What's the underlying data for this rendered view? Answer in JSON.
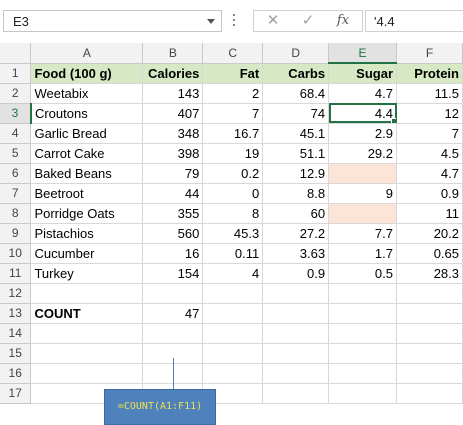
{
  "formula_bar": {
    "name_box": "E3",
    "formula_value": "'4.4",
    "cancel_glyph": "✕",
    "enter_glyph": "✓",
    "fx_glyph": "fx"
  },
  "columns": [
    "A",
    "B",
    "C",
    "D",
    "E",
    "F"
  ],
  "active_cell": {
    "column": "E",
    "row": 3
  },
  "rows": [
    {
      "num": "1",
      "cells": [
        "Food (100 g)",
        "Calories",
        "Fat",
        "Carbs",
        "Sugar",
        "Protein"
      ]
    },
    {
      "num": "2",
      "cells": [
        "Weetabix",
        "143",
        "2",
        "68.4",
        "4.7",
        "11.5"
      ]
    },
    {
      "num": "3",
      "cells": [
        "Croutons",
        "407",
        "7",
        "74",
        "4.4",
        "12"
      ]
    },
    {
      "num": "4",
      "cells": [
        "Garlic Bread",
        "348",
        "16.7",
        "45.1",
        "2.9",
        "7"
      ]
    },
    {
      "num": "5",
      "cells": [
        "Carrot Cake",
        "398",
        "19",
        "51.1",
        "29.2",
        "4.5"
      ]
    },
    {
      "num": "6",
      "cells": [
        "Baked Beans",
        "79",
        "0.2",
        "12.9",
        "",
        "4.7"
      ]
    },
    {
      "num": "7",
      "cells": [
        "Beetroot",
        "44",
        "0",
        "8.8",
        "9",
        "0.9"
      ]
    },
    {
      "num": "8",
      "cells": [
        "Porridge Oats",
        "355",
        "8",
        "60",
        "",
        "11"
      ]
    },
    {
      "num": "9",
      "cells": [
        "Pistachios",
        "560",
        "45.3",
        "27.2",
        "7.7",
        "20.2"
      ]
    },
    {
      "num": "10",
      "cells": [
        "Cucumber",
        "16",
        "0.11",
        "3.63",
        "1.7",
        "0.65"
      ]
    },
    {
      "num": "11",
      "cells": [
        "Turkey",
        "154",
        "4",
        "0.9",
        "0.5",
        "28.3"
      ]
    },
    {
      "num": "12",
      "cells": [
        "",
        "",
        "",
        "",
        "",
        ""
      ]
    },
    {
      "num": "13",
      "cells": [
        "COUNT",
        "47",
        "",
        "",
        "",
        ""
      ]
    },
    {
      "num": "14",
      "cells": [
        "",
        "",
        "",
        "",
        "",
        ""
      ]
    },
    {
      "num": "15",
      "cells": [
        "",
        "",
        "",
        "",
        "",
        ""
      ]
    },
    {
      "num": "16",
      "cells": [
        "",
        "",
        "",
        "",
        "",
        ""
      ]
    },
    {
      "num": "17",
      "cells": [
        "",
        "",
        "",
        "",
        "",
        ""
      ]
    }
  ],
  "callout": {
    "text": "=COUNT(A1:F11)"
  },
  "colors": {
    "header_fill": "#d6e9c4",
    "blank_fill": "#fce4d6",
    "selection": "#217346",
    "callout_fill": "#4f81bd",
    "callout_text": "#f0e24a"
  }
}
